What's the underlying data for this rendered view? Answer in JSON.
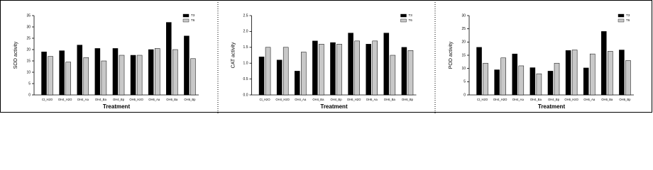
{
  "chart_data": [
    {
      "type": "bar",
      "ylabel": "SOD activity",
      "xlabel": "Treatment",
      "categories": [
        "Ct_H2O",
        "OH4_H2O",
        "OH4_Aa",
        "OH4_Ba",
        "OH4_Bp",
        "OH6_H2O",
        "OH6_Aa",
        "OH6_Ba",
        "OH6_Bp"
      ],
      "series": [
        {
          "name": "T3",
          "color": "#000000",
          "values": [
            19,
            19.5,
            22,
            20.5,
            20.5,
            17.5,
            20,
            32,
            26
          ]
        },
        {
          "name": "T6",
          "color": "#c8c8c8",
          "values": [
            17,
            14.5,
            16.5,
            15,
            17.5,
            17.5,
            20.5,
            20,
            16
          ]
        }
      ],
      "ylim": [
        0,
        35
      ],
      "yticks": [
        0,
        5,
        10,
        15,
        20,
        25,
        30,
        35
      ],
      "legend": "upper right"
    },
    {
      "type": "bar",
      "ylabel": "CAT activity",
      "xlabel": "Treatment",
      "categories": [
        "Ct_H2O",
        "OH4_H2O",
        "OH4_Aa",
        "OH4_Ba",
        "OH4_Bp",
        "OH6_H2O",
        "OH6_Aa",
        "OH6_Ba",
        "OH6_Bp"
      ],
      "series": [
        {
          "name": "T3",
          "color": "#000000",
          "values": [
            1.2,
            1.1,
            0.75,
            1.7,
            1.65,
            1.95,
            1.6,
            1.95,
            1.5
          ]
        },
        {
          "name": "T6",
          "color": "#c8c8c8",
          "values": [
            1.5,
            1.5,
            1.35,
            1.6,
            1.6,
            1.7,
            1.7,
            1.25,
            1.4
          ]
        }
      ],
      "ylim": [
        0,
        2.5
      ],
      "yticks": [
        {
          "value": 0,
          "label": "0.0"
        },
        0.5,
        {
          "value": 1,
          "label": "1.0"
        },
        1.5,
        {
          "value": 2,
          "label": "2.0"
        },
        2.5
      ],
      "legend": "upper right"
    },
    {
      "type": "bar",
      "ylabel": "POD activity",
      "xlabel": "Treatment",
      "categories": [
        "Ct_H2O",
        "OH4_H2O",
        "OH4_Aa",
        "OH4_Ba",
        "OH4_Bp",
        "OH6_H2O",
        "OH6_Aa",
        "OH6_Ba",
        "OH6_Bp"
      ],
      "series": [
        {
          "name": "T3",
          "color": "#000000",
          "values": [
            18,
            9.5,
            15.5,
            10.3,
            9,
            16.8,
            10.2,
            24,
            17
          ]
        },
        {
          "name": "T6",
          "color": "#c8c8c8",
          "values": [
            12,
            14,
            11,
            8,
            12,
            17,
            15.5,
            16.5,
            13
          ]
        }
      ],
      "ylim": [
        0,
        30
      ],
      "yticks": [
        0,
        5,
        10,
        15,
        20,
        25,
        30
      ],
      "legend": "upper right"
    }
  ]
}
